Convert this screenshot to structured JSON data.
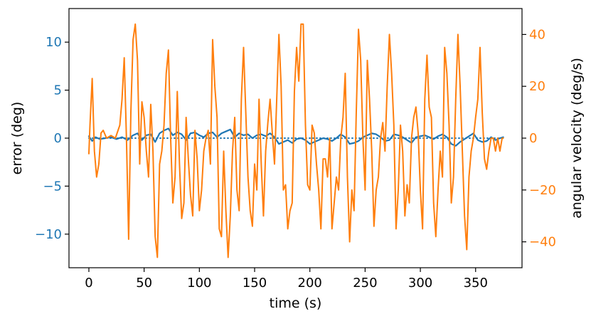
{
  "chart_data": {
    "type": "line",
    "title": "",
    "xlabel": "time (s)",
    "ylabel_left": "error (deg)",
    "ylabel_right": "angular velocity (deg/s)",
    "xlim": [
      -18,
      392
    ],
    "ylim_left": [
      -13.5,
      13.5
    ],
    "ylim_right": [
      -50,
      50
    ],
    "grid": false,
    "x_ticks": [
      0,
      50,
      100,
      150,
      200,
      250,
      300,
      350
    ],
    "x_tick_labels": [
      "0",
      "50",
      "100",
      "150",
      "200",
      "250",
      "300",
      "350"
    ],
    "y_left_ticks": [
      10,
      5,
      0,
      -5,
      -10
    ],
    "y_left_tick_labels": [
      "10",
      "5",
      "0",
      "−5",
      "−10"
    ],
    "y_right_ticks": [
      40,
      20,
      0,
      -20,
      -40
    ],
    "y_right_tick_labels": [
      "40",
      "20",
      "0",
      "−20",
      "−40"
    ],
    "colors": {
      "error": "#1f77b4",
      "angular_velocity": "#ff7f0e"
    },
    "series": [
      {
        "axis": "left",
        "style": "solid",
        "x": [
          0,
          3,
          6,
          10,
          15,
          20,
          25,
          30,
          35,
          40,
          44,
          48,
          52,
          56,
          60,
          64,
          68,
          72,
          76,
          80,
          84,
          88,
          92,
          96,
          100,
          104,
          108,
          112,
          116,
          120,
          124,
          128,
          132,
          136,
          140,
          144,
          148,
          152,
          156,
          160,
          164,
          168,
          172,
          176,
          180,
          184,
          188,
          192,
          196,
          200,
          204,
          208,
          212,
          216,
          220,
          224,
          228,
          232,
          236,
          240,
          244,
          248,
          252,
          256,
          260,
          264,
          268,
          272,
          276,
          280,
          284,
          288,
          292,
          296,
          300,
          304,
          308,
          312,
          316,
          320,
          324,
          328,
          332,
          336,
          340,
          344,
          348,
          352,
          356,
          360,
          364,
          368,
          372,
          375
        ],
        "values": [
          0.2,
          -0.3,
          0.1,
          -0.1,
          0.0,
          0.1,
          -0.1,
          0.1,
          -0.2,
          0.3,
          0.5,
          -0.2,
          0.3,
          0.4,
          -0.4,
          0.5,
          0.8,
          1.0,
          0.3,
          0.6,
          0.4,
          -0.2,
          0.5,
          0.6,
          0.3,
          0.1,
          0.5,
          0.6,
          0.1,
          0.5,
          0.7,
          0.9,
          0.1,
          0.5,
          0.3,
          0.4,
          0.0,
          0.3,
          0.4,
          0.2,
          0.5,
          0.1,
          -0.6,
          -0.4,
          -0.2,
          -0.5,
          -0.1,
          0.0,
          -0.2,
          -0.6,
          -0.4,
          -0.2,
          0.0,
          -0.1,
          -0.3,
          0.0,
          0.4,
          0.1,
          -0.6,
          -0.5,
          -0.3,
          0.1,
          0.3,
          0.5,
          0.4,
          0.1,
          -0.3,
          -0.2,
          0.4,
          0.3,
          0.1,
          -0.2,
          -0.5,
          0.1,
          0.2,
          0.3,
          0.1,
          -0.1,
          0.2,
          0.4,
          0.1,
          -0.6,
          -0.8,
          -0.4,
          -0.1,
          0.2,
          0.5,
          -0.2,
          -0.4,
          -0.3,
          0.1,
          -0.2,
          0.0,
          0.1
        ]
      },
      {
        "axis": "left",
        "style": "dotted",
        "x": [
          0,
          375
        ],
        "values": [
          0.0,
          0.0
        ]
      },
      {
        "axis": "right",
        "style": "solid",
        "x": [
          0,
          1,
          3,
          5,
          7,
          9,
          11,
          13,
          16,
          20,
          24,
          28,
          30,
          32,
          34,
          36,
          38,
          40,
          42,
          44,
          46,
          48,
          50,
          52,
          54,
          56,
          58,
          60,
          62,
          64,
          66,
          68,
          70,
          72,
          74,
          76,
          78,
          80,
          82,
          84,
          86,
          88,
          90,
          92,
          94,
          96,
          98,
          100,
          102,
          104,
          106,
          108,
          110,
          112,
          114,
          116,
          118,
          120,
          122,
          124,
          126,
          128,
          130,
          132,
          134,
          136,
          138,
          140,
          142,
          144,
          146,
          148,
          150,
          152,
          154,
          156,
          158,
          160,
          162,
          164,
          166,
          168,
          170,
          172,
          174,
          176,
          178,
          180,
          182,
          184,
          186,
          188,
          190,
          192,
          194,
          196,
          198,
          200,
          202,
          204,
          206,
          208,
          210,
          212,
          214,
          216,
          218,
          220,
          222,
          224,
          226,
          228,
          230,
          232,
          234,
          236,
          238,
          240,
          242,
          244,
          246,
          248,
          250,
          252,
          254,
          256,
          258,
          260,
          262,
          264,
          266,
          268,
          270,
          272,
          274,
          276,
          278,
          280,
          282,
          284,
          286,
          288,
          290,
          292,
          294,
          296,
          298,
          300,
          302,
          304,
          306,
          308,
          310,
          312,
          314,
          316,
          318,
          320,
          322,
          324,
          326,
          328,
          330,
          332,
          334,
          336,
          338,
          340,
          342,
          344,
          346,
          348,
          350,
          352,
          354,
          356,
          358,
          360,
          362,
          364,
          366,
          368,
          370,
          372,
          374,
          375
        ],
        "values": [
          -6,
          5,
          23,
          -5,
          -15,
          -10,
          2,
          3,
          0,
          1,
          0,
          5,
          15,
          31,
          0,
          -39,
          10,
          38,
          44,
          30,
          -10,
          14,
          8,
          -5,
          -15,
          13,
          -5,
          -38,
          -46,
          -10,
          -5,
          5,
          25,
          34,
          0,
          -25,
          -15,
          18,
          -10,
          -31,
          -25,
          8,
          -8,
          -22,
          -30,
          3,
          -8,
          -28,
          -20,
          -5,
          0,
          3,
          -10,
          38,
          20,
          8,
          -35,
          -38,
          -5,
          -28,
          -46,
          -30,
          -5,
          8,
          -20,
          -28,
          15,
          35,
          10,
          -15,
          -28,
          -34,
          -10,
          -20,
          15,
          -10,
          -30,
          -5,
          6,
          15,
          2,
          -10,
          15,
          40,
          20,
          -20,
          -18,
          -35,
          -28,
          -25,
          18,
          35,
          22,
          44,
          44,
          5,
          -18,
          -20,
          5,
          2,
          -10,
          -20,
          -35,
          -8,
          -8,
          -15,
          0,
          -35,
          -25,
          -15,
          -20,
          0,
          8,
          25,
          -15,
          -40,
          -20,
          -28,
          10,
          42,
          30,
          0,
          -20,
          30,
          15,
          -5,
          -34,
          -20,
          -15,
          0,
          6,
          -5,
          20,
          40,
          25,
          5,
          -35,
          -20,
          5,
          -5,
          -30,
          -18,
          -25,
          0,
          8,
          12,
          2,
          -20,
          -35,
          15,
          32,
          12,
          8,
          -25,
          -38,
          -20,
          -5,
          -15,
          35,
          25,
          5,
          -25,
          -15,
          15,
          40,
          20,
          -5,
          -30,
          -43,
          -15,
          -5,
          0,
          8,
          15,
          35,
          10,
          -8,
          -12,
          -5,
          0,
          0,
          -5,
          0,
          -5,
          0,
          0
        ]
      }
    ]
  }
}
